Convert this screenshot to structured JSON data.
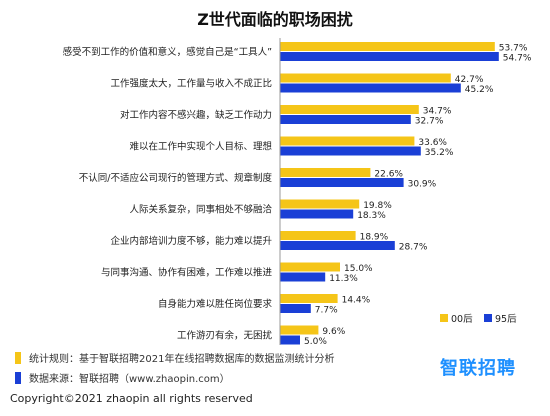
{
  "chart_data": {
    "type": "bar",
    "orientation": "horizontal",
    "title": "Z世代面临的职场困扰",
    "categories": [
      "感受不到工作的价值和意义，感觉自己是“工具人”",
      "工作强度太大，工作量与收入不成正比",
      "对工作内容不感兴趣，缺乏工作动力",
      "难以在工作中实现个人目标、理想",
      "不认同/不适应公司现行的管理方式、规章制度",
      "人际关系复杂，同事相处不够融洽",
      "企业内部培训力度不够，能力难以提升",
      "与同事沟通、协作有困难，工作难以推进",
      "自身能力难以胜任岗位要求",
      "工作游刃有余，无困扰"
    ],
    "series": [
      {
        "name": "00后",
        "color": "#f5c518",
        "values": [
          53.7,
          42.7,
          34.7,
          33.6,
          22.6,
          19.8,
          18.9,
          15.0,
          14.4,
          9.6
        ],
        "labels": [
          "53.7%",
          "42.7%",
          "34.7%",
          "33.6%",
          "22.6%",
          "19.8%",
          "18.9%",
          "15.0%",
          "14.4%",
          "9.6%"
        ]
      },
      {
        "name": "95后",
        "color": "#1a3fd6",
        "values": [
          54.7,
          45.2,
          32.7,
          35.2,
          30.9,
          18.3,
          28.7,
          11.3,
          7.7,
          5.0
        ],
        "labels": [
          "54.7%",
          "45.2%",
          "32.7%",
          "35.2%",
          "30.9%",
          "18.3%",
          "28.7%",
          "11.3%",
          "7.7%",
          "5.0%"
        ]
      }
    ],
    "xlim": [
      0,
      56
    ],
    "legend_position": "bottom-right",
    "grid": false
  },
  "notes": [
    {
      "color": "#f5c518",
      "text": "统计规则：基于智联招聘2021年在线招聘数据库的数据监测统计分析"
    },
    {
      "color": "#1a3fd6",
      "text": "数据来源：智联招聘（www.zhaopin.com）"
    }
  ],
  "brand": "智联招聘",
  "copyright": "Copyright©2021 zhaopin  all rights reserved"
}
